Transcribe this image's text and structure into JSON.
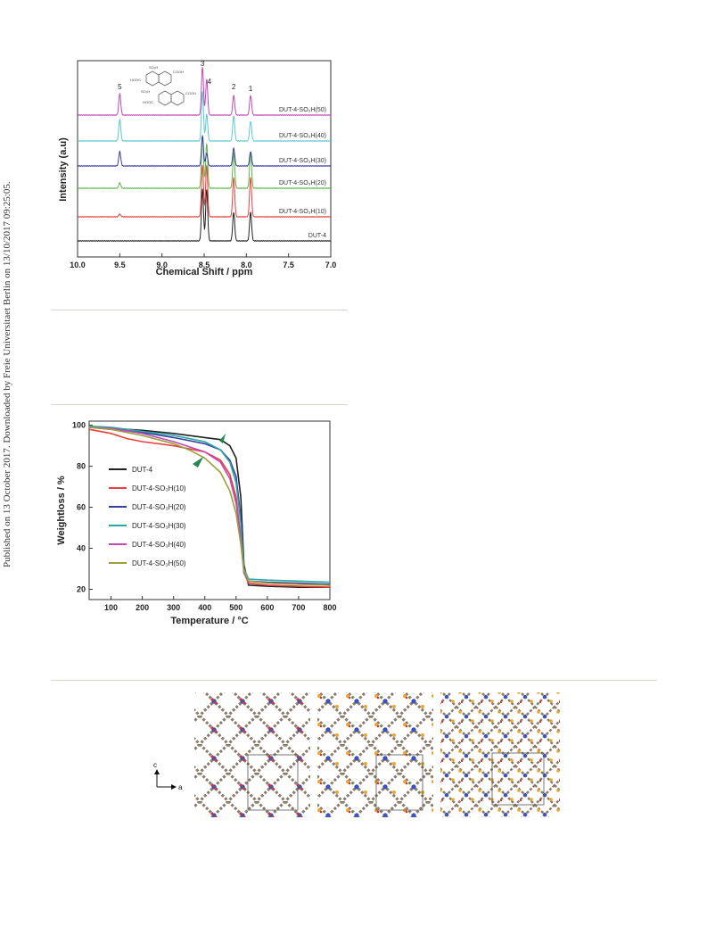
{
  "sidebar_note": "Published on 13 October 2017. Downloaded by Freie Universitaet Berlin on 13/10/2017 09:25:05.",
  "nmr_chart": {
    "type": "line",
    "xlabel": "Chemical Shift / ppm",
    "ylabel": "Intensity (a.u)",
    "xlim": [
      10.0,
      7.0
    ],
    "x_ticks": [
      "10.0",
      "9.5",
      "9.0",
      "8.5",
      "8.0",
      "7.5",
      "7.0"
    ],
    "peak_labels": [
      {
        "label": "5",
        "ppm": 9.5
      },
      {
        "label": "3",
        "ppm": 8.52
      },
      {
        "label": "4",
        "ppm": 8.47
      },
      {
        "label": "2",
        "ppm": 8.15
      },
      {
        "label": "1",
        "ppm": 7.95
      }
    ],
    "series": [
      {
        "name": "DUT-4",
        "color": "#222222"
      },
      {
        "name": "DUT-4-SO₃H(10)",
        "color": "#e8403b"
      },
      {
        "name": "DUT-4-SO₃H(20)",
        "color": "#5cb84a"
      },
      {
        "name": "DUT-4-SO₃H(30)",
        "color": "#3a3f9e"
      },
      {
        "name": "DUT-4-SO₃H(40)",
        "color": "#5fc8d2"
      },
      {
        "name": "DUT-4-SO₃H(50)",
        "color": "#c04ab4"
      }
    ],
    "peaks_ppm": [
      9.5,
      8.52,
      8.47,
      8.15,
      7.95
    ],
    "inset_labels": [
      "SO₃H",
      "COOH",
      "HOOC",
      "SO₃H",
      "COOH",
      "HOOC"
    ]
  },
  "tga_chart": {
    "type": "line",
    "xlabel": "Temperature / °C",
    "ylabel": "Weightloss / %",
    "xlim": [
      30,
      800
    ],
    "ylim": [
      15,
      102
    ],
    "x_ticks": [
      "100",
      "200",
      "300",
      "400",
      "500",
      "600",
      "700",
      "800"
    ],
    "y_ticks": [
      "20",
      "40",
      "60",
      "80",
      "100"
    ],
    "legend_position": "center-left",
    "series": [
      {
        "name": "DUT-4",
        "color": "#222222",
        "points": [
          [
            30,
            99
          ],
          [
            100,
            98.5
          ],
          [
            200,
            97.5
          ],
          [
            300,
            96
          ],
          [
            400,
            94
          ],
          [
            450,
            93
          ],
          [
            480,
            90
          ],
          [
            500,
            84
          ],
          [
            515,
            65
          ],
          [
            525,
            32
          ],
          [
            540,
            22
          ],
          [
            600,
            21.5
          ],
          [
            700,
            21
          ],
          [
            800,
            21
          ]
        ]
      },
      {
        "name": "DUT-4-SO₃H(10)",
        "color": "#e8403b",
        "points": [
          [
            30,
            98
          ],
          [
            100,
            96
          ],
          [
            150,
            93.5
          ],
          [
            200,
            92
          ],
          [
            300,
            90
          ],
          [
            400,
            87
          ],
          [
            450,
            83
          ],
          [
            480,
            76
          ],
          [
            500,
            65
          ],
          [
            515,
            45
          ],
          [
            525,
            28
          ],
          [
            540,
            23
          ],
          [
            600,
            22
          ],
          [
            700,
            21.5
          ],
          [
            800,
            21
          ]
        ]
      },
      {
        "name": "DUT-4-SO₃H(20)",
        "color": "#3a3f9e",
        "points": [
          [
            30,
            99
          ],
          [
            100,
            98
          ],
          [
            200,
            96.5
          ],
          [
            300,
            94
          ],
          [
            400,
            91
          ],
          [
            450,
            88
          ],
          [
            480,
            83
          ],
          [
            500,
            75
          ],
          [
            515,
            55
          ],
          [
            525,
            30
          ],
          [
            540,
            24
          ],
          [
            600,
            23.5
          ],
          [
            700,
            23
          ],
          [
            800,
            22.5
          ]
        ]
      },
      {
        "name": "DUT-4-SO₃H(30)",
        "color": "#2aa8a8",
        "points": [
          [
            30,
            99.5
          ],
          [
            100,
            99
          ],
          [
            200,
            97
          ],
          [
            300,
            95
          ],
          [
            400,
            92
          ],
          [
            450,
            88
          ],
          [
            480,
            82
          ],
          [
            500,
            72
          ],
          [
            515,
            52
          ],
          [
            525,
            30
          ],
          [
            540,
            25
          ],
          [
            600,
            24.5
          ],
          [
            700,
            24
          ],
          [
            800,
            23.5
          ]
        ]
      },
      {
        "name": "DUT-4-SO₃H(40)",
        "color": "#c04ab4",
        "points": [
          [
            30,
            99
          ],
          [
            100,
            98.5
          ],
          [
            200,
            96
          ],
          [
            300,
            92
          ],
          [
            400,
            87
          ],
          [
            450,
            82
          ],
          [
            480,
            74
          ],
          [
            500,
            62
          ],
          [
            515,
            45
          ],
          [
            525,
            28
          ],
          [
            540,
            24
          ],
          [
            600,
            23
          ],
          [
            700,
            22.5
          ],
          [
            800,
            22
          ]
        ]
      },
      {
        "name": "DUT-4-SO₃H(50)",
        "color": "#9aa03a",
        "points": [
          [
            30,
            99
          ],
          [
            100,
            98
          ],
          [
            200,
            95
          ],
          [
            300,
            91
          ],
          [
            350,
            88
          ],
          [
            400,
            84
          ],
          [
            450,
            77
          ],
          [
            480,
            68
          ],
          [
            500,
            57
          ],
          [
            515,
            42
          ],
          [
            525,
            29
          ],
          [
            540,
            24
          ],
          [
            600,
            23
          ],
          [
            700,
            22.5
          ],
          [
            800,
            22
          ]
        ]
      }
    ]
  },
  "structure_figure": {
    "axis_labels": {
      "vertical": "c",
      "horizontal": "a"
    },
    "panels": 3
  }
}
